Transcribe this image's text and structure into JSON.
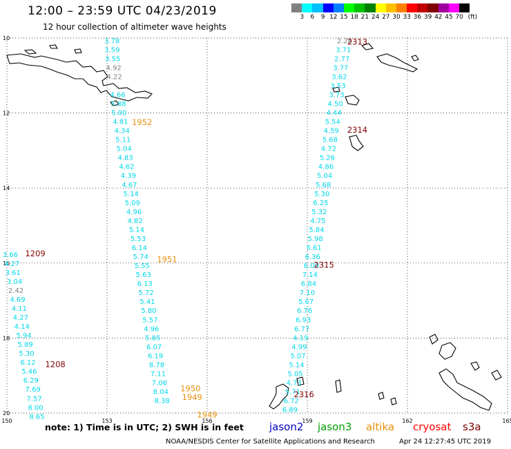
{
  "header": {
    "title": "12:00 – 23:59 UTC 04/23/2019",
    "subtitle": "12 hour collection of altimeter wave heights"
  },
  "legend": {
    "unit": "(ft)",
    "colors": [
      "#808080",
      "#00ffff",
      "#00bfff",
      "#0000ff",
      "#0080ff",
      "#00ff00",
      "#00c000",
      "#008000",
      "#ffff00",
      "#ffc000",
      "#ff8000",
      "#ff0000",
      "#c00000",
      "#800000",
      "#a000a0",
      "#ff00ff",
      "#000000"
    ],
    "labels": [
      "3",
      "6",
      "9",
      "12",
      "15",
      "18",
      "21",
      "24",
      "27",
      "30",
      "33",
      "36",
      "39",
      "42",
      "45",
      "70"
    ]
  },
  "axes": {
    "x_ticks": [
      "150",
      "153",
      "156",
      "159",
      "162",
      "165"
    ],
    "y_ticks": [
      "10",
      "12",
      "14",
      "16",
      "18",
      "20"
    ]
  },
  "tracks": [
    {
      "name": "track-a",
      "color": "#00d8e8",
      "points": [
        {
          "lon": 153.15,
          "lat": 10.06,
          "swh": "3.78"
        },
        {
          "lon": 153.15,
          "lat": 10.3,
          "swh": "3.59"
        },
        {
          "lon": 153.17,
          "lat": 10.54,
          "swh": "3.55"
        },
        {
          "lon": 153.2,
          "lat": 10.78,
          "swh": "4.92",
          "color": "#808080"
        },
        {
          "lon": 153.22,
          "lat": 11.02,
          "swh": "4.22",
          "color": "#808080"
        },
        {
          "lon": 153.32,
          "lat": 11.5,
          "swh": "4.66"
        },
        {
          "lon": 153.34,
          "lat": 11.74,
          "swh": "5.88"
        },
        {
          "lon": 153.36,
          "lat": 11.98,
          "swh": "5.00"
        },
        {
          "lon": 153.4,
          "lat": 12.22,
          "swh": "4.81"
        },
        {
          "lon": 153.45,
          "lat": 12.46,
          "swh": "4.34"
        },
        {
          "lon": 153.48,
          "lat": 12.7,
          "swh": "5.11"
        },
        {
          "lon": 153.51,
          "lat": 12.94,
          "swh": "5.04"
        },
        {
          "lon": 153.55,
          "lat": 13.18,
          "swh": "4.83"
        },
        {
          "lon": 153.59,
          "lat": 13.42,
          "swh": "4.62"
        },
        {
          "lon": 153.64,
          "lat": 13.66,
          "swh": "4.39"
        },
        {
          "lon": 153.67,
          "lat": 13.9,
          "swh": "4.67"
        },
        {
          "lon": 153.72,
          "lat": 14.14,
          "swh": "5.14"
        },
        {
          "lon": 153.76,
          "lat": 14.38,
          "swh": "5.09"
        },
        {
          "lon": 153.81,
          "lat": 14.62,
          "swh": "4.96"
        },
        {
          "lon": 153.84,
          "lat": 14.86,
          "swh": "4.82"
        },
        {
          "lon": 153.89,
          "lat": 15.1,
          "swh": "5.14"
        },
        {
          "lon": 153.93,
          "lat": 15.34,
          "swh": "5.53"
        },
        {
          "lon": 153.97,
          "lat": 15.58,
          "swh": "6.14"
        },
        {
          "lon": 154.01,
          "lat": 15.82,
          "swh": "5.74"
        },
        {
          "lon": 154.05,
          "lat": 16.06,
          "swh": "5.55"
        },
        {
          "lon": 154.09,
          "lat": 16.3,
          "swh": "5.63"
        },
        {
          "lon": 154.13,
          "lat": 16.54,
          "swh": "6.13"
        },
        {
          "lon": 154.17,
          "lat": 16.78,
          "swh": "5.72"
        },
        {
          "lon": 154.21,
          "lat": 17.02,
          "swh": "5.41"
        },
        {
          "lon": 154.25,
          "lat": 17.26,
          "swh": "5.80"
        },
        {
          "lon": 154.29,
          "lat": 17.5,
          "swh": "5.57"
        },
        {
          "lon": 154.33,
          "lat": 17.74,
          "swh": "4.96"
        },
        {
          "lon": 154.37,
          "lat": 17.98,
          "swh": "5.85"
        },
        {
          "lon": 154.41,
          "lat": 18.22,
          "swh": "6.07"
        },
        {
          "lon": 154.45,
          "lat": 18.46,
          "swh": "6.19"
        },
        {
          "lon": 154.49,
          "lat": 18.7,
          "swh": "8.78"
        },
        {
          "lon": 154.53,
          "lat": 18.94,
          "swh": "7.11"
        },
        {
          "lon": 154.57,
          "lat": 19.18,
          "swh": "7.06"
        },
        {
          "lon": 154.61,
          "lat": 19.42,
          "swh": "8.04"
        },
        {
          "lon": 154.65,
          "lat": 19.66,
          "swh": "8.38"
        }
      ]
    },
    {
      "name": "track-b",
      "color": "#00d8e8",
      "points": [
        {
          "lon": 150.1,
          "lat": 15.76,
          "swh": "3.66"
        },
        {
          "lon": 150.15,
          "lat": 16.0,
          "swh": "4.27"
        },
        {
          "lon": 150.18,
          "lat": 16.24,
          "swh": "3.61"
        },
        {
          "lon": 150.23,
          "lat": 16.48,
          "swh": "3.04"
        },
        {
          "lon": 150.27,
          "lat": 16.72,
          "swh": "2.42",
          "color": "#808080"
        },
        {
          "lon": 150.32,
          "lat": 16.96,
          "swh": "4.69"
        },
        {
          "lon": 150.37,
          "lat": 17.2,
          "swh": "4.11"
        },
        {
          "lon": 150.41,
          "lat": 17.44,
          "swh": "4.27"
        },
        {
          "lon": 150.45,
          "lat": 17.68,
          "swh": "4.14"
        },
        {
          "lon": 150.51,
          "lat": 17.92,
          "swh": "5.94"
        },
        {
          "lon": 150.55,
          "lat": 18.16,
          "swh": "5.89"
        },
        {
          "lon": 150.59,
          "lat": 18.4,
          "swh": "5.30"
        },
        {
          "lon": 150.63,
          "lat": 18.64,
          "swh": "6.12"
        },
        {
          "lon": 150.67,
          "lat": 18.88,
          "swh": "5.46"
        },
        {
          "lon": 150.72,
          "lat": 19.12,
          "swh": "6.29"
        },
        {
          "lon": 150.78,
          "lat": 19.36,
          "swh": "7.69"
        },
        {
          "lon": 150.82,
          "lat": 19.6,
          "swh": "7.57"
        },
        {
          "lon": 150.86,
          "lat": 19.84,
          "swh": "8.00"
        },
        {
          "lon": 150.9,
          "lat": 20.08,
          "swh": "8.65"
        }
      ]
    },
    {
      "name": "track-c",
      "color": "#00d8e8",
      "points": [
        {
          "lon": 160.12,
          "lat": 10.06,
          "swh": "2.26",
          "color": "#808080"
        },
        {
          "lon": 160.08,
          "lat": 10.3,
          "swh": "3.71"
        },
        {
          "lon": 160.04,
          "lat": 10.54,
          "swh": "2.77"
        },
        {
          "lon": 160.0,
          "lat": 10.78,
          "swh": "3.77"
        },
        {
          "lon": 159.96,
          "lat": 11.02,
          "swh": "3.62"
        },
        {
          "lon": 159.92,
          "lat": 11.26,
          "swh": "3.53"
        },
        {
          "lon": 159.88,
          "lat": 11.5,
          "swh": "3.73"
        },
        {
          "lon": 159.84,
          "lat": 11.74,
          "swh": "4.50"
        },
        {
          "lon": 159.8,
          "lat": 11.98,
          "swh": "4.44"
        },
        {
          "lon": 159.76,
          "lat": 12.22,
          "swh": "5.54"
        },
        {
          "lon": 159.72,
          "lat": 12.46,
          "swh": "4.59"
        },
        {
          "lon": 159.68,
          "lat": 12.7,
          "swh": "5.68"
        },
        {
          "lon": 159.64,
          "lat": 12.94,
          "swh": "4.72"
        },
        {
          "lon": 159.6,
          "lat": 13.18,
          "swh": "5.26"
        },
        {
          "lon": 159.56,
          "lat": 13.42,
          "swh": "4.86"
        },
        {
          "lon": 159.52,
          "lat": 13.66,
          "swh": "5.04"
        },
        {
          "lon": 159.48,
          "lat": 13.9,
          "swh": "5.68"
        },
        {
          "lon": 159.44,
          "lat": 14.14,
          "swh": "5.30"
        },
        {
          "lon": 159.4,
          "lat": 14.38,
          "swh": "6.25"
        },
        {
          "lon": 159.36,
          "lat": 14.62,
          "swh": "5.32"
        },
        {
          "lon": 159.32,
          "lat": 14.86,
          "swh": "4.75"
        },
        {
          "lon": 159.28,
          "lat": 15.1,
          "swh": "5.84"
        },
        {
          "lon": 159.24,
          "lat": 15.34,
          "swh": "5.98"
        },
        {
          "lon": 159.2,
          "lat": 15.58,
          "swh": "5.61"
        },
        {
          "lon": 159.16,
          "lat": 15.82,
          "swh": "6.36"
        },
        {
          "lon": 159.12,
          "lat": 16.06,
          "swh": "6.09"
        },
        {
          "lon": 159.08,
          "lat": 16.3,
          "swh": "7.14"
        },
        {
          "lon": 159.04,
          "lat": 16.54,
          "swh": "6.84"
        },
        {
          "lon": 159.0,
          "lat": 16.78,
          "swh": "7.10"
        },
        {
          "lon": 158.96,
          "lat": 17.02,
          "swh": "5.67"
        },
        {
          "lon": 158.92,
          "lat": 17.26,
          "swh": "6.76"
        },
        {
          "lon": 158.88,
          "lat": 17.5,
          "swh": "6.93"
        },
        {
          "lon": 158.84,
          "lat": 17.74,
          "swh": "6.77"
        },
        {
          "lon": 158.8,
          "lat": 17.98,
          "swh": "4.19"
        },
        {
          "lon": 158.76,
          "lat": 18.22,
          "swh": "4.99"
        },
        {
          "lon": 158.72,
          "lat": 18.46,
          "swh": "5.07"
        },
        {
          "lon": 158.68,
          "lat": 18.7,
          "swh": "5.14"
        },
        {
          "lon": 158.64,
          "lat": 18.94,
          "swh": "5.05"
        },
        {
          "lon": 158.6,
          "lat": 19.18,
          "swh": "4.73"
        },
        {
          "lon": 158.56,
          "lat": 19.42,
          "swh": "5.71"
        },
        {
          "lon": 158.52,
          "lat": 19.66,
          "swh": "6.72"
        },
        {
          "lon": 158.48,
          "lat": 19.9,
          "swh": "6.89"
        }
      ]
    }
  ],
  "time_labels": [
    {
      "text": "2313",
      "lon": 160.5,
      "lat": 10.1,
      "color": "#800000"
    },
    {
      "text": "2314",
      "lon": 160.5,
      "lat": 12.45,
      "color": "#800000"
    },
    {
      "text": "2315",
      "lon": 159.5,
      "lat": 16.05,
      "color": "#800000"
    },
    {
      "text": "2316",
      "lon": 158.9,
      "lat": 19.5,
      "color": "#800000"
    },
    {
      "text": "1952",
      "lon": 154.05,
      "lat": 12.25,
      "color": "#e8900a"
    },
    {
      "text": "1951",
      "lon": 154.8,
      "lat": 15.9,
      "color": "#e8900a"
    },
    {
      "text": "1950",
      "lon": 155.5,
      "lat": 19.35,
      "color": "#e8900a"
    },
    {
      "text": "1949",
      "lon": 155.55,
      "lat": 19.58,
      "color": "#e8900a"
    },
    {
      "text": "1949",
      "lon": 156.0,
      "lat": 20.05,
      "color": "#e8900a"
    },
    {
      "text": "1209",
      "lon": 150.85,
      "lat": 15.75,
      "color": "#800000"
    },
    {
      "text": "1208",
      "lon": 151.45,
      "lat": 18.7,
      "color": "#800000"
    }
  ],
  "footer": {
    "note": "note:  1) Time is in UTC;  2) SWH is in feet",
    "satellites": [
      {
        "name": "jason2",
        "color": "#0000c0"
      },
      {
        "name": "jason3",
        "color": "#00a000"
      },
      {
        "name": "altika",
        "color": "#e8900a"
      },
      {
        "name": "cryosat",
        "color": "#ff0000"
      },
      {
        "name": "s3a",
        "color": "#800000"
      }
    ],
    "credit": "NOAA/NESDIS Center for Satellite Applications and Research",
    "timestamp": "Apr 24 12:27:45 UTC 2019"
  }
}
